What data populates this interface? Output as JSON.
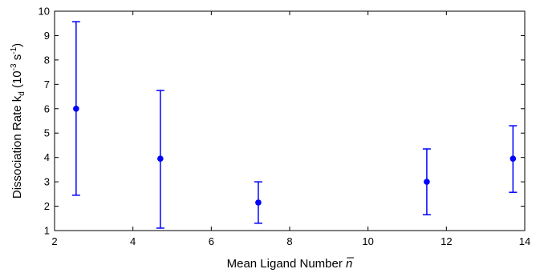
{
  "chart_data": {
    "type": "scatter",
    "title": "",
    "xlabel": "Mean Ligand Number",
    "xlabel_symbol": "n̅",
    "ylabel": "Dissociation Rate k",
    "ylabel_subscript": "d",
    "ylabel_units": " (10",
    "ylabel_exp": "-3",
    "ylabel_units_tail": " s",
    "ylabel_exp2": "-1",
    "ylabel_close": ")",
    "xlim": [
      2,
      14
    ],
    "ylim": [
      1,
      10
    ],
    "xticks": [
      2,
      4,
      6,
      8,
      10,
      12,
      14
    ],
    "yticks": [
      1,
      2,
      3,
      4,
      5,
      6,
      7,
      8,
      9,
      10
    ],
    "grid": false,
    "series": [
      {
        "x": [
          2.55,
          4.7,
          7.2,
          11.5,
          13.7
        ],
        "y": [
          6.0,
          3.95,
          2.15,
          3.0,
          3.95
        ],
        "err_low": [
          2.45,
          1.1,
          1.3,
          1.65,
          2.57
        ],
        "err_high": [
          9.57,
          6.75,
          3.0,
          4.35,
          5.3
        ]
      }
    ],
    "colors": {
      "series": "#0000ff",
      "axis": "#000000"
    }
  }
}
